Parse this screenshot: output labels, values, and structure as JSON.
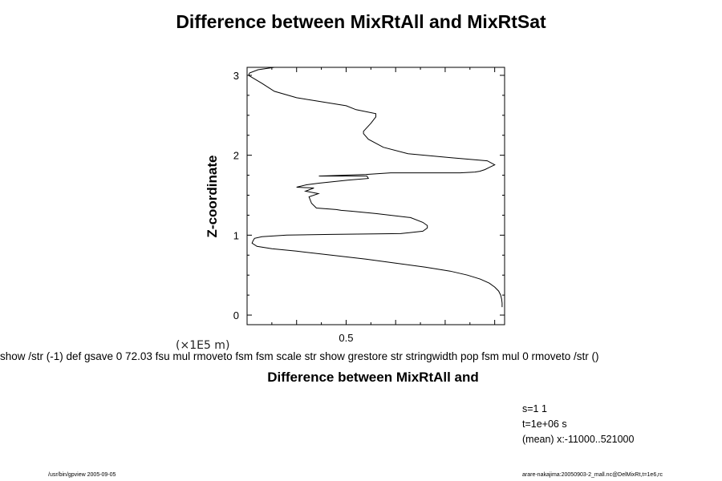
{
  "chart_data": {
    "type": "line",
    "title": "Difference between MixRtAll and MixRtSat",
    "xlabel": "Difference between MixRtAll and",
    "ylabel": "Z-coordinate",
    "y_unit_note": "(×1E5 m)",
    "xlim": [
      0.3,
      0.82
    ],
    "ylim": [
      -0.12,
      3.1
    ],
    "x_ticks": [
      0.5
    ],
    "x_tick_labels": [
      "0.5"
    ],
    "y_ticks": [
      0,
      1,
      2,
      3
    ],
    "y_tick_labels": [
      "0",
      "1",
      "2",
      "3"
    ],
    "grid": false,
    "series": [
      {
        "x": [
          0.815,
          0.815,
          0.814,
          0.812,
          0.808,
          0.8,
          0.789,
          0.771,
          0.745,
          0.71,
          0.66,
          0.6,
          0.54,
          0.47,
          0.4,
          0.35,
          0.32,
          0.31,
          0.312,
          0.315,
          0.33,
          0.38,
          0.47,
          0.61,
          0.655,
          0.664,
          0.664,
          0.655,
          0.63,
          0.56,
          0.51,
          0.49,
          0.48,
          0.44,
          0.43,
          0.425,
          0.444,
          0.418,
          0.435,
          0.4,
          0.42,
          0.445,
          0.505,
          0.545,
          0.542,
          0.475,
          0.445,
          0.54,
          0.59,
          0.73,
          0.76,
          0.77,
          0.78,
          0.79,
          0.8,
          0.785,
          0.71,
          0.625,
          0.575,
          0.545,
          0.535,
          0.535,
          0.55,
          0.56,
          0.56,
          0.52,
          0.5,
          0.44,
          0.4,
          0.355,
          0.33,
          0.303,
          0.305,
          0.322,
          0.355
        ],
        "y": [
          0.1,
          0.15,
          0.2,
          0.25,
          0.3,
          0.35,
          0.4,
          0.45,
          0.5,
          0.55,
          0.6,
          0.65,
          0.7,
          0.75,
          0.8,
          0.83,
          0.86,
          0.9,
          0.93,
          0.96,
          0.98,
          1.0,
          1.01,
          1.02,
          1.05,
          1.09,
          1.12,
          1.16,
          1.22,
          1.27,
          1.3,
          1.31,
          1.32,
          1.34,
          1.4,
          1.48,
          1.52,
          1.55,
          1.59,
          1.6,
          1.63,
          1.65,
          1.69,
          1.71,
          1.74,
          1.74,
          1.74,
          1.76,
          1.78,
          1.78,
          1.79,
          1.8,
          1.82,
          1.85,
          1.88,
          1.93,
          1.97,
          2.02,
          2.1,
          2.2,
          2.27,
          2.3,
          2.4,
          2.48,
          2.52,
          2.57,
          2.62,
          2.68,
          2.72,
          2.8,
          2.9,
          3.0,
          3.03,
          3.07,
          3.1
        ]
      }
    ]
  },
  "ps_garbage": "show /str (-1) def gsave 0 72.03 fsu mul rmoveto fsm fsm scale str show grestore str stringwidth pop fsm mul 0 rmoveto /str ()",
  "info": {
    "s": "s=1 1",
    "t": "t=1e+06 s",
    "mean": "(mean) x:-11000..521000"
  },
  "footer": {
    "left": "/usr/bin/gpview 2005-09-05",
    "right": "arare-nakajima:20050903-2_mall.nc@DelMixRt,t=1e6,rc"
  }
}
